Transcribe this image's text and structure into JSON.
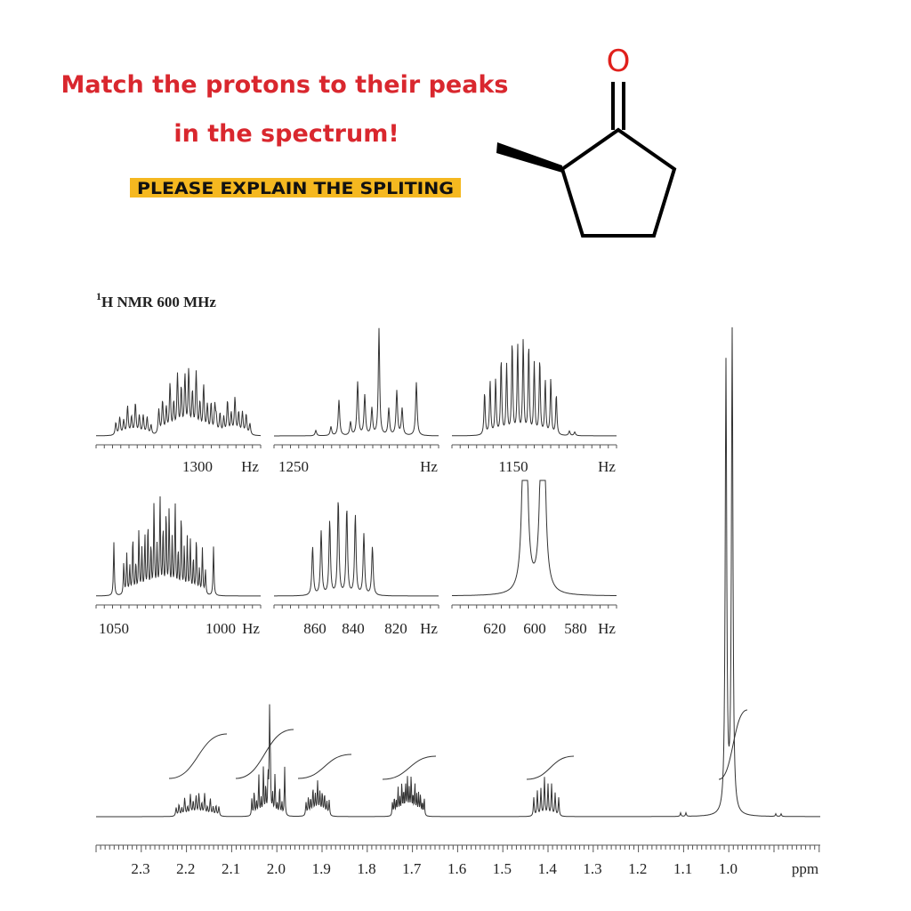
{
  "question": {
    "line1": "Match the protons to their peaks",
    "line2": "in the spectrum!",
    "note": "PLEASE EXPLAIN THE SPLITING"
  },
  "molecule": {
    "atom": "O"
  },
  "spectrum": {
    "title_sup": "1",
    "title": "H NMR 600 MHz",
    "insets": [
      {
        "labels": [
          "1300",
          "Hz"
        ]
      },
      {
        "labels": [
          "1250",
          "Hz"
        ]
      },
      {
        "labels": [
          "1150",
          "Hz"
        ]
      },
      {
        "labels": [
          "1050",
          "1000",
          "Hz"
        ]
      },
      {
        "labels": [
          "860",
          "840",
          "820",
          "Hz"
        ]
      },
      {
        "labels": [
          "620",
          "600",
          "580",
          "Hz"
        ]
      }
    ],
    "axis": {
      "ticks": [
        "2.3",
        "2.2",
        "2.1",
        "2.0",
        "1.9",
        "1.8",
        "1.7",
        "1.6",
        "1.5",
        "1.4",
        "1.3",
        "1.2",
        "1.1",
        "1.0"
      ],
      "unit": "ppm"
    }
  }
}
